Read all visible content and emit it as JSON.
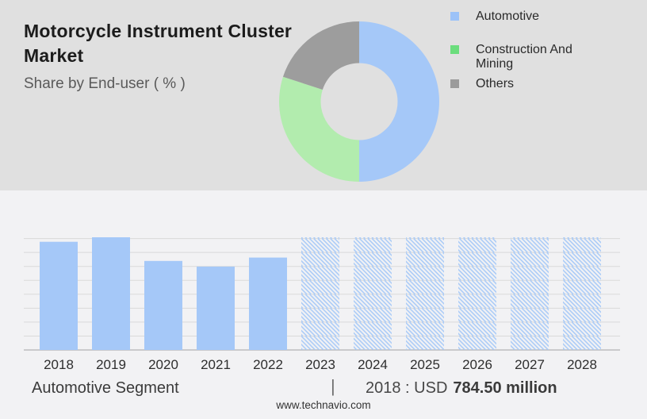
{
  "header": {
    "title": "Motorcycle Instrument Cluster Market",
    "subtitle": "Share by End-user ( % )"
  },
  "donut_legend": [
    {
      "label": "Automotive",
      "color": "#9cc2f8"
    },
    {
      "label": "Construction And Mining",
      "color": "#6bdd7d"
    },
    {
      "label": "Others",
      "color": "#9b9b9b"
    }
  ],
  "footer": {
    "segment_label": "Automotive Segment",
    "separator": "|",
    "value_prefix": "2018 : USD",
    "value_bold": "784.50 million",
    "website": "www.technavio.com"
  },
  "colors": {
    "top_background": "#e0e0e0",
    "bottom_background": "#f2f2f4",
    "bar_blue": "#a5c8f8",
    "hatch_blue": "#a8caf7",
    "gridline": "#d9d9d9",
    "axis_line": "#b3b3b3",
    "axis_label": "#2e2e2e"
  },
  "chart_data": [
    {
      "type": "pie",
      "subtype": "donut",
      "title": "Share by End-user ( % )",
      "labels": [
        "Automotive",
        "Construction And Mining",
        "Others"
      ],
      "values": [
        50,
        30,
        20
      ],
      "unit": "%",
      "colors": [
        "#a5c8f8",
        "#b2ecae",
        "#9d9d9d"
      ],
      "start_angle_deg": 0,
      "clockwise": true,
      "legend_position": "right",
      "note": "no numeric labels shown; shares estimated from segment angles"
    },
    {
      "type": "bar",
      "title": "Automotive Segment",
      "categories": [
        "2018",
        "2019",
        "2020",
        "2021",
        "2022",
        "2023",
        "2024",
        "2025",
        "2026",
        "2027",
        "2028"
      ],
      "values": [
        96,
        100,
        79,
        74,
        82,
        100,
        100,
        100,
        100,
        100,
        100
      ],
      "styles": [
        "solid",
        "solid",
        "solid",
        "solid",
        "solid",
        "hatched",
        "hatched",
        "hatched",
        "hatched",
        "hatched",
        "hatched"
      ],
      "ylim": [
        0,
        100
      ],
      "ylabel": "",
      "xlabel": "",
      "grid": true,
      "gridline_count": 9,
      "legend_position": "none",
      "note": "y-axis unlabeled; values are % of tallest bar (2019 / forecast bars); 2023-2028 are hatched forecast bars",
      "annotation": "2018 : USD 784.50 million"
    }
  ]
}
